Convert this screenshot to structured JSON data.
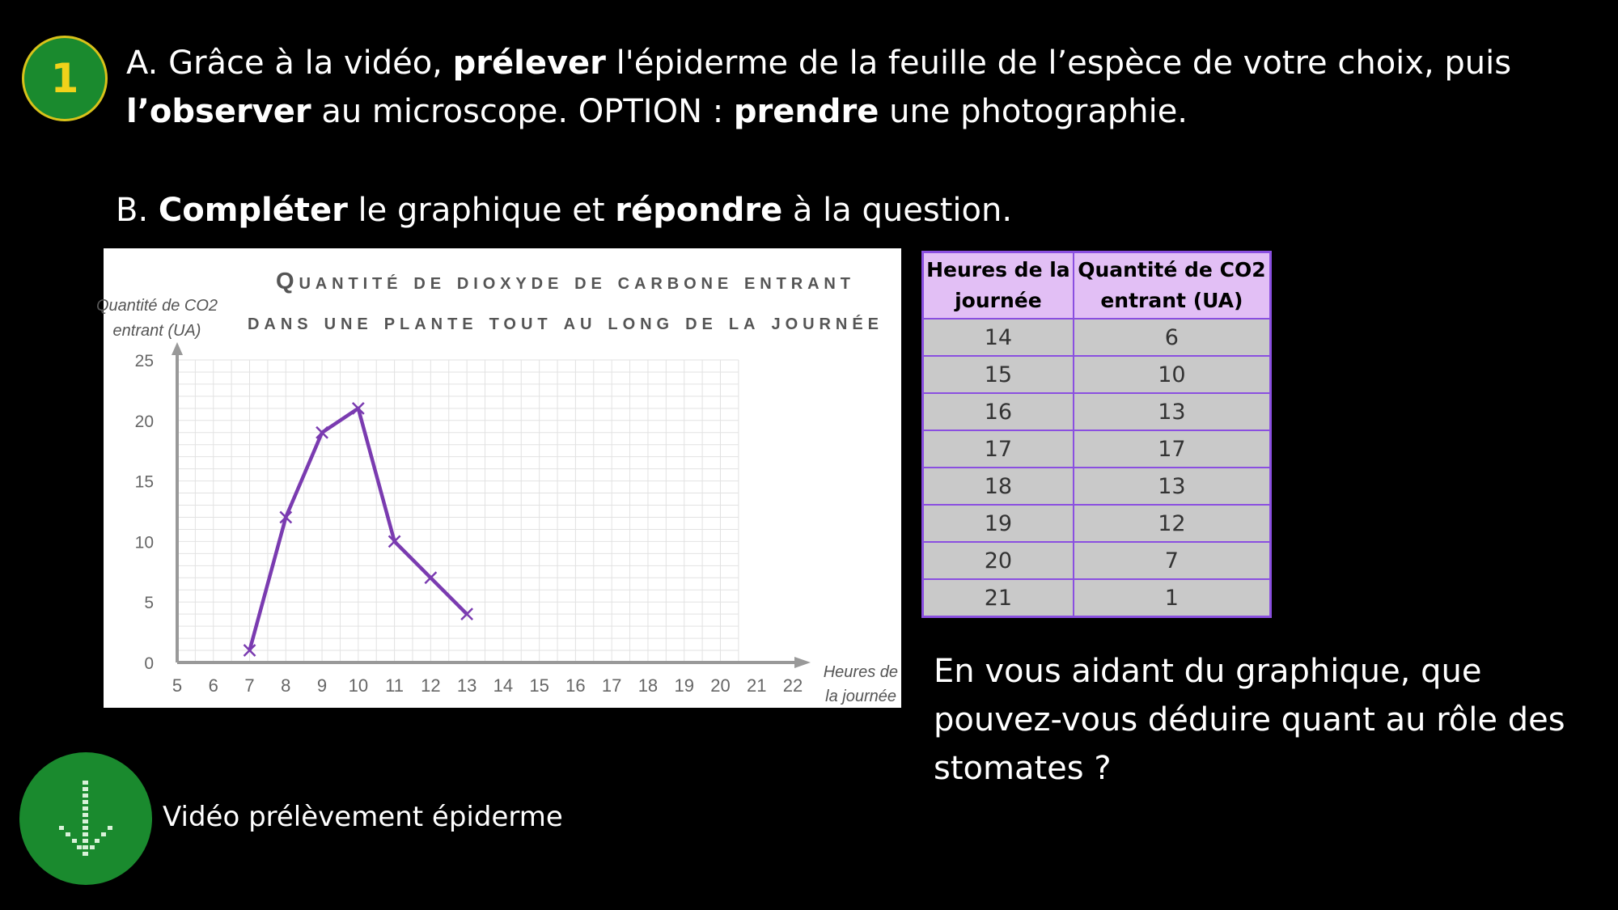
{
  "step_number": "1",
  "instruction_a": {
    "p1": "A. Grâce à la vidéo, ",
    "b1": "prélever",
    "p2": " l'épiderme de la feuille de l’espèce de votre choix, puis ",
    "b2": "l’observer",
    "p3": " au microscope. OPTION : ",
    "b3": "prendre",
    "p4": " une photographie."
  },
  "instruction_b": {
    "p1": "B. ",
    "b1": "Compléter",
    "p2": " le graphique et ",
    "b2": "répondre",
    "p3": " à la question."
  },
  "chart_data": {
    "type": "line",
    "title_line1": "Quantité de dioxyde de carbone entrant",
    "title_line2": "dans une plante tout au long de la journée",
    "ylabel_line1": "Quantité de CO2",
    "ylabel_line2": "entrant (UA)",
    "xlabel_line1": "Heures de",
    "xlabel_line2": "la journée",
    "xlim": [
      5,
      22
    ],
    "ylim": [
      0,
      25
    ],
    "x_ticks": [
      5,
      6,
      7,
      8,
      9,
      10,
      11,
      12,
      13,
      14,
      15,
      16,
      17,
      18,
      19,
      20,
      21,
      22
    ],
    "y_ticks": [
      0,
      5,
      10,
      15,
      20,
      25
    ],
    "grid": true,
    "x": [
      7,
      8,
      9,
      10,
      11,
      12,
      13
    ],
    "y": [
      1,
      12,
      19,
      21,
      10,
      7,
      4
    ],
    "line_color": "#7a3bb0"
  },
  "table": {
    "headers": [
      "Heures de la journée",
      "Quantité de CO2 entrant (UA)"
    ],
    "rows": [
      [
        "14",
        "6"
      ],
      [
        "15",
        "10"
      ],
      [
        "16",
        "13"
      ],
      [
        "17",
        "17"
      ],
      [
        "18",
        "13"
      ],
      [
        "19",
        "12"
      ],
      [
        "20",
        "7"
      ],
      [
        "21",
        "1"
      ]
    ]
  },
  "question": "En vous aidant du graphique, que pouvez-vous déduire quant au rôle des stomates ?",
  "video": {
    "label": "Vidéo prélèvement épiderme",
    "icon": "download-arrow-icon"
  },
  "colors": {
    "background": "#000000",
    "badge_green": "#1a8a2e",
    "badge_yellow": "#f1d21a",
    "table_border": "#8a4fe0",
    "table_header": "#e2bff5",
    "table_cell": "#c9c9c9"
  }
}
